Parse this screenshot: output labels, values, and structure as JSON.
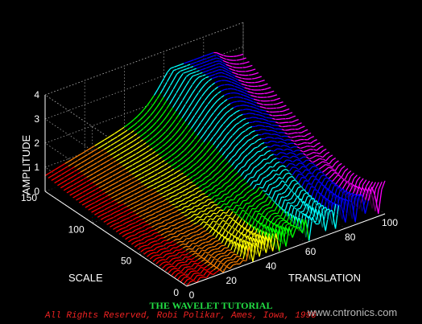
{
  "chart_data": {
    "type": "surface-3d",
    "title": "THE WAVELET TUTORIAL",
    "xlabel": "TRANSLATION",
    "ylabel": "SCALE",
    "zlabel": "AMPLITUDE",
    "xlim": [
      0,
      100
    ],
    "ylim": [
      0,
      150
    ],
    "zlim": [
      0,
      4
    ],
    "x_ticks": [
      0,
      20,
      40,
      60,
      80,
      100
    ],
    "y_ticks": [
      0,
      50,
      100,
      150
    ],
    "z_ticks": [
      0,
      1,
      2,
      3,
      4
    ],
    "grid": true,
    "background": "#000000",
    "colormap": [
      "#ff0000",
      "#ff8000",
      "#ffff00",
      "#00ff00",
      "#00ffff",
      "#0000ff",
      "#ff00ff"
    ],
    "surface_samples": [
      {
        "translation": 0,
        "scale": 0,
        "amplitude": 0.0
      },
      {
        "translation": 10,
        "scale": 150,
        "amplitude": 0.3
      },
      {
        "translation": 30,
        "scale": 150,
        "amplitude": 1.5
      },
      {
        "translation": 50,
        "scale": 150,
        "amplitude": 3.0
      },
      {
        "translation": 70,
        "scale": 150,
        "amplitude": 3.3
      },
      {
        "translation": 90,
        "scale": 150,
        "amplitude": 2.8
      },
      {
        "translation": 100,
        "scale": 150,
        "amplitude": 1.8
      },
      {
        "translation": 50,
        "scale": 10,
        "amplitude": 0.8
      },
      {
        "translation": 90,
        "scale": 10,
        "amplitude": 1.2
      }
    ]
  },
  "caption": {
    "title": "THE WAVELET TUTORIAL",
    "rights": "All Rights Reserved, Robi Polikar, Ames, Iowa, 1996"
  },
  "watermark": "www.cntronics.com"
}
